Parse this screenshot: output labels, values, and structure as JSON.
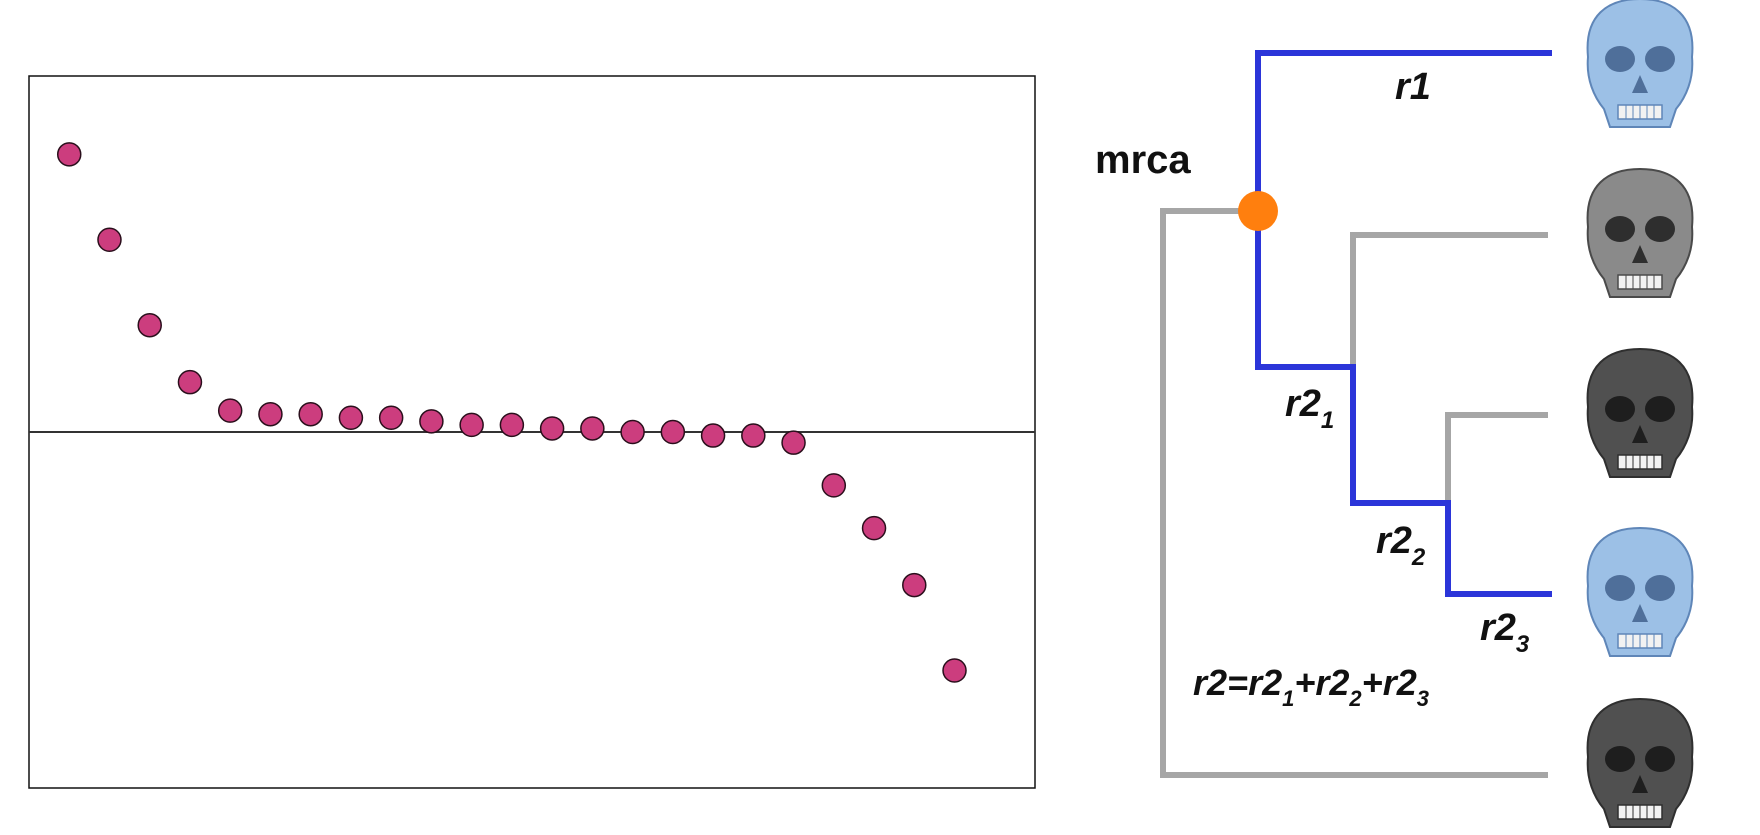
{
  "colors": {
    "point_fill": "#cc3d7e",
    "point_stroke": "#2a0f1c",
    "zero_line": "#333333",
    "frame": "#111111",
    "highlight_branch": "#2b35d9",
    "other_branch": "#a6a6a6",
    "node": "#ff7f0e",
    "skull_blue": "#9cc0e6",
    "skull_gray": "#6e6e6e",
    "skull_dark": "#505050"
  },
  "chart_data": {
    "type": "scatter",
    "title": "",
    "xlabel": "",
    "ylabel": "",
    "grid": false,
    "xlim": [
      0,
      25
    ],
    "ylim": [
      -1.0,
      1.0
    ],
    "reference_line_y": 0,
    "x": [
      1,
      2,
      3,
      4,
      5,
      6,
      7,
      8,
      9,
      10,
      11,
      12,
      13,
      14,
      15,
      16,
      17,
      18,
      19,
      20,
      21,
      22,
      23
    ],
    "y": [
      0.78,
      0.54,
      0.3,
      0.14,
      0.06,
      0.05,
      0.05,
      0.04,
      0.04,
      0.03,
      0.02,
      0.02,
      0.01,
      0.01,
      0.0,
      0.0,
      -0.01,
      -0.01,
      -0.03,
      -0.15,
      -0.27,
      -0.43,
      -0.67
    ]
  },
  "tree": {
    "node_label": "mrca",
    "branch_labels": {
      "r1": {
        "base": "r1",
        "sub": ""
      },
      "r2_1": {
        "base": "r2",
        "sub": "1"
      },
      "r2_2": {
        "base": "r2",
        "sub": "2"
      },
      "r2_3": {
        "base": "r2",
        "sub": "3"
      }
    },
    "formula": {
      "lhs": "r2=",
      "t1": "r2",
      "s1": "1",
      "plus1": "+",
      "t2": "r2",
      "s2": "2",
      "plus2": "+",
      "t3": "r2",
      "s3": "3"
    },
    "tips": [
      {
        "icon": "skull-blue-icon",
        "color": "blue"
      },
      {
        "icon": "skull-gray-icon",
        "color": "gray"
      },
      {
        "icon": "skull-dark-icon",
        "color": "dark"
      },
      {
        "icon": "skull-blue-icon",
        "color": "blue"
      },
      {
        "icon": "skull-dark-icon",
        "color": "dark"
      }
    ]
  }
}
